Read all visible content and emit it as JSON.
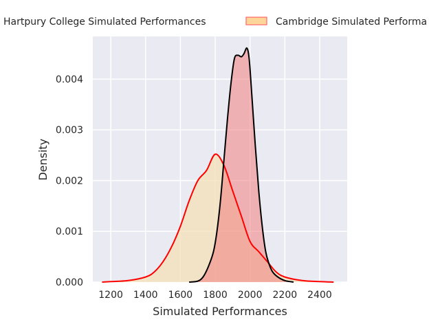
{
  "chart_data": {
    "type": "area",
    "title": "",
    "xlabel": "Simulated Performances",
    "ylabel": "Density",
    "xlim": [
      1097,
      2558
    ],
    "ylim": [
      0,
      0.00484
    ],
    "xticks": [
      1200,
      1400,
      1600,
      1800,
      2000,
      2200,
      2400
    ],
    "xtick_labels": [
      "1200",
      "1400",
      "1600",
      "1800",
      "2000",
      "2200",
      "2400"
    ],
    "yticks": [
      0,
      0.001,
      0.002,
      0.003,
      0.004
    ],
    "ytick_labels": [
      "0.000",
      "0.001",
      "0.002",
      "0.003",
      "0.004"
    ],
    "grid": true,
    "legend_placement": "top-center (outside, clipped)",
    "series": [
      {
        "name": "Cambridge Simulated Performances",
        "legend_label": "Cambridge Simulated Performa",
        "fill": "#f5deb3",
        "line": "#ff0000",
        "x": [
          1150,
          1200,
          1300,
          1400,
          1450,
          1500,
          1550,
          1600,
          1650,
          1700,
          1750,
          1800,
          1850,
          1900,
          1950,
          2000,
          2050,
          2100,
          2150,
          2200,
          2300,
          2400,
          2480
        ],
        "y": [
          0,
          1e-05,
          3e-05,
          0.0001,
          0.0002,
          0.0004,
          0.0007,
          0.0011,
          0.0016,
          0.002,
          0.0022,
          0.00252,
          0.0023,
          0.0018,
          0.0013,
          0.0008,
          0.0006,
          0.0004,
          0.0002,
          0.0001,
          3e-05,
          1e-05,
          0
        ]
      },
      {
        "name": "Hartpury College Simulated Performances",
        "legend_label": "Hartpury College Simulated Performances",
        "fill": "#f08080",
        "line": "#000000",
        "x": [
          1650,
          1700,
          1730,
          1760,
          1790,
          1810,
          1830,
          1850,
          1870,
          1890,
          1910,
          1930,
          1950,
          1965,
          1982,
          1995,
          2010,
          2030,
          2050,
          2070,
          2090,
          2110,
          2130,
          2160,
          2200,
          2250
        ],
        "y": [
          0,
          2e-05,
          0.0001,
          0.0003,
          0.0006,
          0.001,
          0.0016,
          0.0024,
          0.0032,
          0.0039,
          0.0044,
          0.00447,
          0.00444,
          0.0045,
          0.00461,
          0.0044,
          0.0037,
          0.0027,
          0.0018,
          0.0011,
          0.0006,
          0.00035,
          0.0002,
          0.0001,
          3e-05,
          0
        ]
      }
    ]
  }
}
